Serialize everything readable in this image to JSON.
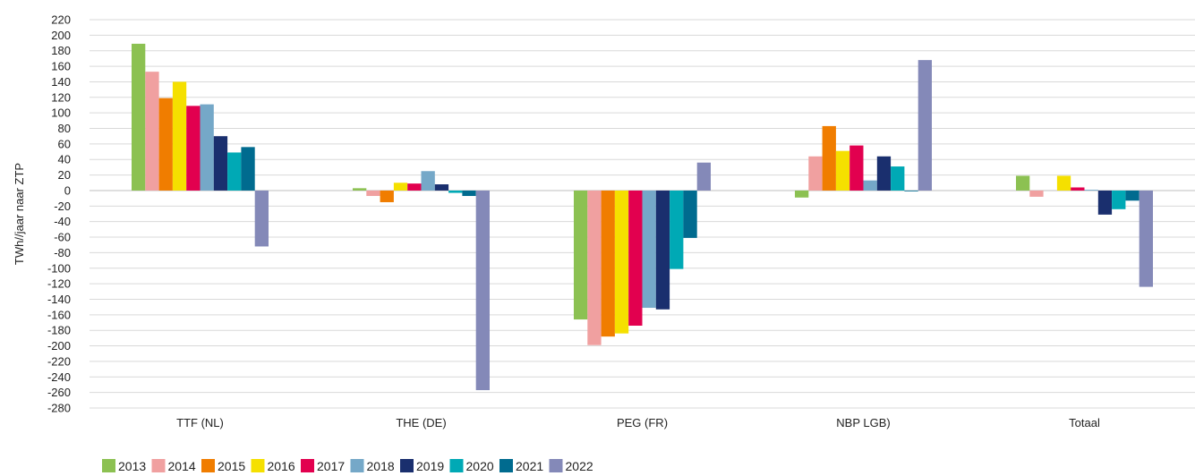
{
  "chart_data": {
    "type": "bar",
    "categories": [
      "TTF (NL)",
      "THE (DE)",
      "PEG (FR)",
      "NBP LGB)",
      "Totaal"
    ],
    "ylabel": "TWh//jaar naar ZTP",
    "xlabel": "",
    "ylim": [
      -280,
      220
    ],
    "ytick_step": 20,
    "grid": true,
    "legend_position": "bottom-left",
    "series": [
      {
        "name": "2013",
        "color": "#8cc152",
        "values": [
          189,
          3,
          -166,
          -9,
          19
        ]
      },
      {
        "name": "2014",
        "color": "#f0a0a0",
        "values": [
          153,
          -7,
          -199,
          44,
          -8
        ]
      },
      {
        "name": "2015",
        "color": "#f07d00",
        "values": [
          119,
          -15,
          -188,
          83,
          0
        ]
      },
      {
        "name": "2016",
        "color": "#f5e000",
        "values": [
          140,
          10,
          -184,
          51,
          19
        ]
      },
      {
        "name": "2017",
        "color": "#e2004f",
        "values": [
          109,
          9,
          -174,
          58,
          4
        ]
      },
      {
        "name": "2018",
        "color": "#75a8c8",
        "values": [
          111,
          25,
          -151,
          13,
          1
        ]
      },
      {
        "name": "2019",
        "color": "#1a2f6e",
        "values": [
          70,
          8,
          -153,
          44,
          -31
        ]
      },
      {
        "name": "2020",
        "color": "#00a9b5",
        "values": [
          49,
          -3,
          -101,
          31,
          -24
        ]
      },
      {
        "name": "2021",
        "color": "#006b8f",
        "values": [
          56,
          -7,
          -61,
          -1,
          -13
        ]
      },
      {
        "name": "2022",
        "color": "#8489b8",
        "values": [
          -72,
          -257,
          36,
          168,
          -124
        ]
      }
    ]
  }
}
